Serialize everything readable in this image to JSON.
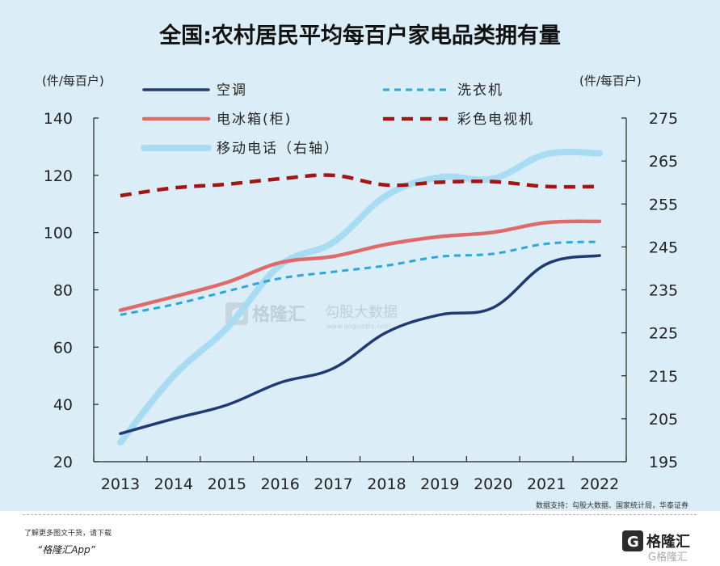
{
  "title": "全国:农村居民平均每百户家电品类拥有量",
  "source": "数据支持：勾股大数据、国家统计局，华泰证券",
  "watermark": {
    "brand": "格隆汇",
    "sub_brand": "勾股大数据",
    "domain": "www.gogudata.com"
  },
  "footer": {
    "promo_line1": "了解更多图文干货，请下载",
    "promo_line2": "“格隆汇App”",
    "brand": "格隆汇",
    "brand_small": "G格隆汇"
  },
  "colors": {
    "background": "#dbeef8",
    "air_conditioner": "#1f3a75",
    "washing_machine": "#2aa7dd",
    "refrigerator": "#e06a6a",
    "color_tv": "#a31515",
    "mobile_phone": "#a8dcf3"
  },
  "chart_data": {
    "type": "line",
    "title": "全国:农村居民平均每百户家电品类拥有量",
    "x": [
      "2013",
      "2014",
      "2015",
      "2016",
      "2017",
      "2018",
      "2019",
      "2020",
      "2021",
      "2022"
    ],
    "left_axis": {
      "unit": "(件/每百户)",
      "range": [
        20,
        140
      ],
      "ticks": [
        20,
        40,
        60,
        80,
        100,
        120,
        140
      ]
    },
    "right_axis": {
      "unit": "(件/每百户)",
      "range": [
        195,
        275
      ],
      "ticks": [
        195,
        205,
        215,
        225,
        235,
        245,
        255,
        265,
        275
      ]
    },
    "grid": false,
    "legend_position": "top",
    "series": [
      {
        "name": "空调",
        "axis": "left",
        "style": "solid",
        "color": "#1f3a75",
        "values": [
          29.8,
          35.0,
          39.8,
          47.6,
          52.6,
          65.2,
          71.3,
          73.8,
          89.0,
          92.0
        ]
      },
      {
        "name": "洗衣机",
        "axis": "left",
        "style": "dashed",
        "color": "#2aa7dd",
        "values": [
          71.3,
          74.9,
          79.5,
          84.0,
          86.3,
          88.5,
          91.6,
          92.6,
          96.1,
          96.8
        ]
      },
      {
        "name": "电冰箱(柜)",
        "axis": "left",
        "style": "solid",
        "color": "#e06a6a",
        "values": [
          72.9,
          77.6,
          82.6,
          89.5,
          91.7,
          95.9,
          98.6,
          100.1,
          103.5,
          103.9
        ]
      },
      {
        "name": "彩色电视机",
        "axis": "left",
        "style": "dashed",
        "color": "#a31515",
        "values": [
          112.9,
          115.6,
          116.9,
          118.8,
          120.0,
          116.6,
          117.6,
          117.8,
          116.1,
          116.1
        ]
      },
      {
        "name": "移动电话（右轴）",
        "axis": "right",
        "style": "solid",
        "color": "#a8dcf3",
        "values": [
          199.5,
          215.0,
          226.1,
          240.7,
          246.1,
          257.0,
          261.2,
          260.9,
          266.6,
          266.8
        ]
      }
    ]
  }
}
